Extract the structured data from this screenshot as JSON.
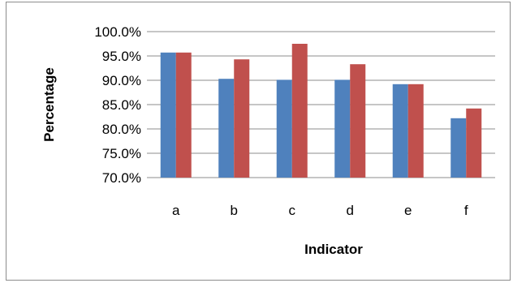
{
  "chart_data": {
    "type": "bar",
    "title": "",
    "xlabel": "Indicator",
    "ylabel": "Percentage",
    "categories": [
      "a",
      "b",
      "c",
      "d",
      "e",
      "f"
    ],
    "series": [
      {
        "values": [
          95.7,
          90.3,
          90.1,
          90.1,
          89.2,
          82.2
        ],
        "color": "#4f81bd"
      },
      {
        "values": [
          95.7,
          94.3,
          97.5,
          93.3,
          89.2,
          84.2
        ],
        "color": "#c0504d"
      }
    ],
    "ylim": [
      70,
      100
    ],
    "ytick_step": 5,
    "ytick_labels": [
      "70.0%",
      "75.0%",
      "80.0%",
      "85.0%",
      "90.0%",
      "95.0%",
      "100.0%"
    ],
    "grid": true,
    "legend": "none"
  }
}
